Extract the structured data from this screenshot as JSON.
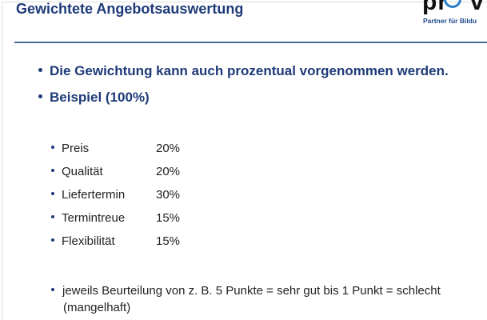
{
  "slide": {
    "title": "Gewichtete Angebotsauswertung",
    "logo": {
      "text": "prov",
      "tagline": "Partner für Bildu"
    },
    "bullets": [
      "Die Gewichtung kann auch prozentual vorgenommen werden.",
      "Beispiel (100%)"
    ],
    "criteria": [
      {
        "name": "Preis",
        "weight": "20%"
      },
      {
        "name": "Qualität",
        "weight": "20%"
      },
      {
        "name": "Liefertermin",
        "weight": "30%"
      },
      {
        "name": "Termintreue",
        "weight": "15%"
      },
      {
        "name": "Flexibilität",
        "weight": "15%"
      }
    ],
    "note_line1": "jeweils Beurteilung von z. B. 5 Punkte = sehr gut bis 1 Punkt = schlecht",
    "note_line2": "(mangelhaft)"
  },
  "colors": {
    "accent": "#1e3a78",
    "rule": "#4a6a9a",
    "logo_ring": "#2a7fc8"
  }
}
